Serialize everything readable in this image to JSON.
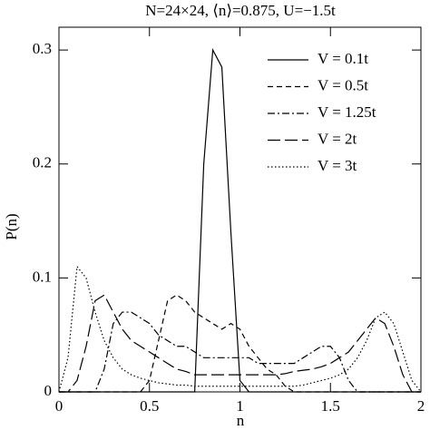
{
  "chart_data": {
    "type": "line",
    "title": "N=24×24, ⟨n⟩=0.875, U=−1.5t",
    "xlabel": "n",
    "ylabel": "P(n)",
    "x": [
      0,
      0.05,
      0.1,
      0.15,
      0.2,
      0.25,
      0.3,
      0.35,
      0.4,
      0.45,
      0.5,
      0.55,
      0.6,
      0.65,
      0.7,
      0.75,
      0.8,
      0.85,
      0.9,
      0.95,
      1,
      1.05,
      1.1,
      1.15,
      1.2,
      1.25,
      1.3,
      1.35,
      1.4,
      1.45,
      1.5,
      1.55,
      1.6,
      1.65,
      1.7,
      1.75,
      1.8,
      1.85,
      1.9,
      1.95,
      2
    ],
    "series": [
      {
        "name": "V = 0.1t",
        "color": "#000000",
        "linestyle": "solid",
        "values": [
          0,
          0,
          0,
          0,
          0,
          0,
          0,
          0,
          0,
          0,
          0,
          0,
          0,
          0,
          0,
          0,
          0.2,
          0.3,
          0.285,
          0.14,
          0.01,
          0,
          0,
          0,
          0,
          0,
          0,
          0,
          0,
          0,
          0,
          0,
          0,
          0,
          0,
          0,
          0,
          0,
          0,
          0,
          0
        ]
      },
      {
        "name": "V = 0.5t",
        "color": "#000000",
        "linestyle": "dashed",
        "values": [
          0,
          0,
          0,
          0,
          0,
          0,
          0,
          0,
          0,
          0,
          0.01,
          0.045,
          0.08,
          0.085,
          0.08,
          0.07,
          0.065,
          0.06,
          0.055,
          0.06,
          0.055,
          0.04,
          0.03,
          0.02,
          0.015,
          0.005,
          0,
          0,
          0,
          0,
          0,
          0,
          0,
          0,
          0,
          0,
          0,
          0,
          0,
          0,
          0
        ]
      },
      {
        "name": "V = 1.25t",
        "color": "#000000",
        "linestyle": "dashdot",
        "values": [
          0,
          0,
          0,
          0,
          0,
          0.02,
          0.06,
          0.07,
          0.07,
          0.065,
          0.06,
          0.05,
          0.045,
          0.04,
          0.04,
          0.035,
          0.03,
          0.03,
          0.03,
          0.03,
          0.03,
          0.03,
          0.025,
          0.025,
          0.025,
          0.025,
          0.025,
          0.03,
          0.035,
          0.04,
          0.04,
          0.03,
          0.01,
          0,
          0,
          0,
          0,
          0,
          0,
          0,
          0
        ]
      },
      {
        "name": "V = 2t",
        "color": "#000000",
        "linestyle": "longdash",
        "values": [
          0,
          0,
          0.01,
          0.04,
          0.08,
          0.085,
          0.07,
          0.055,
          0.045,
          0.04,
          0.035,
          0.03,
          0.025,
          0.02,
          0.018,
          0.015,
          0.015,
          0.015,
          0.015,
          0.015,
          0.015,
          0.015,
          0.015,
          0.015,
          0.015,
          0.016,
          0.018,
          0.019,
          0.02,
          0.022,
          0.025,
          0.03,
          0.035,
          0.045,
          0.055,
          0.065,
          0.06,
          0.04,
          0.015,
          0,
          0
        ]
      },
      {
        "name": "V = 3t",
        "color": "#000000",
        "linestyle": "dotted",
        "values": [
          0,
          0.03,
          0.11,
          0.1,
          0.07,
          0.045,
          0.03,
          0.02,
          0.015,
          0.012,
          0.01,
          0.008,
          0.007,
          0.006,
          0.006,
          0.005,
          0.005,
          0.005,
          0.005,
          0.005,
          0.005,
          0.005,
          0.005,
          0.005,
          0.005,
          0.005,
          0.005,
          0.006,
          0.008,
          0.01,
          0.012,
          0.015,
          0.02,
          0.03,
          0.045,
          0.065,
          0.07,
          0.06,
          0.035,
          0.01,
          0
        ]
      }
    ],
    "xlim": [
      0,
      2
    ],
    "xticks": [
      0,
      0.5,
      1,
      1.5,
      2
    ],
    "ylim": [
      0,
      0.32
    ],
    "yticks": [
      0,
      0.1,
      0.2,
      0.3
    ],
    "legend": "upper right",
    "grid": false
  }
}
